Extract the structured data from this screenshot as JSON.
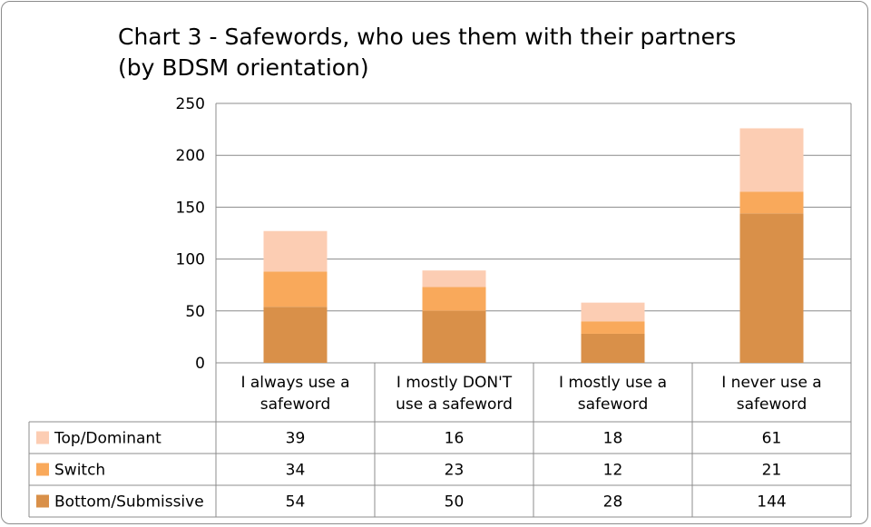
{
  "chart_data": {
    "type": "bar",
    "stacked": true,
    "title": "Chart 3 - Safewords, who ues them with their partners (by BDSM orientation)",
    "categories": [
      [
        "I always use a",
        "safeword"
      ],
      [
        "I mostly DON'T",
        "use a safeword"
      ],
      [
        "I mostly use a",
        "safeword"
      ],
      [
        "I never use a",
        "safeword"
      ]
    ],
    "series": [
      {
        "name": "Top/Dominant",
        "color": "#fccdb3",
        "values": [
          39,
          16,
          18,
          61
        ]
      },
      {
        "name": "Switch",
        "color": "#f9a95b",
        "values": [
          34,
          23,
          12,
          21
        ]
      },
      {
        "name": "Bottom/Submissive",
        "color": "#d99049",
        "values": [
          54,
          50,
          28,
          144
        ]
      }
    ],
    "stack_order_bottom_to_top": [
      "Bottom/Submissive",
      "Switch",
      "Top/Dominant"
    ],
    "ylim": [
      0,
      250
    ],
    "yticks": [
      0,
      50,
      100,
      150,
      200,
      250
    ],
    "grid": true,
    "legend": "data-table-left"
  }
}
